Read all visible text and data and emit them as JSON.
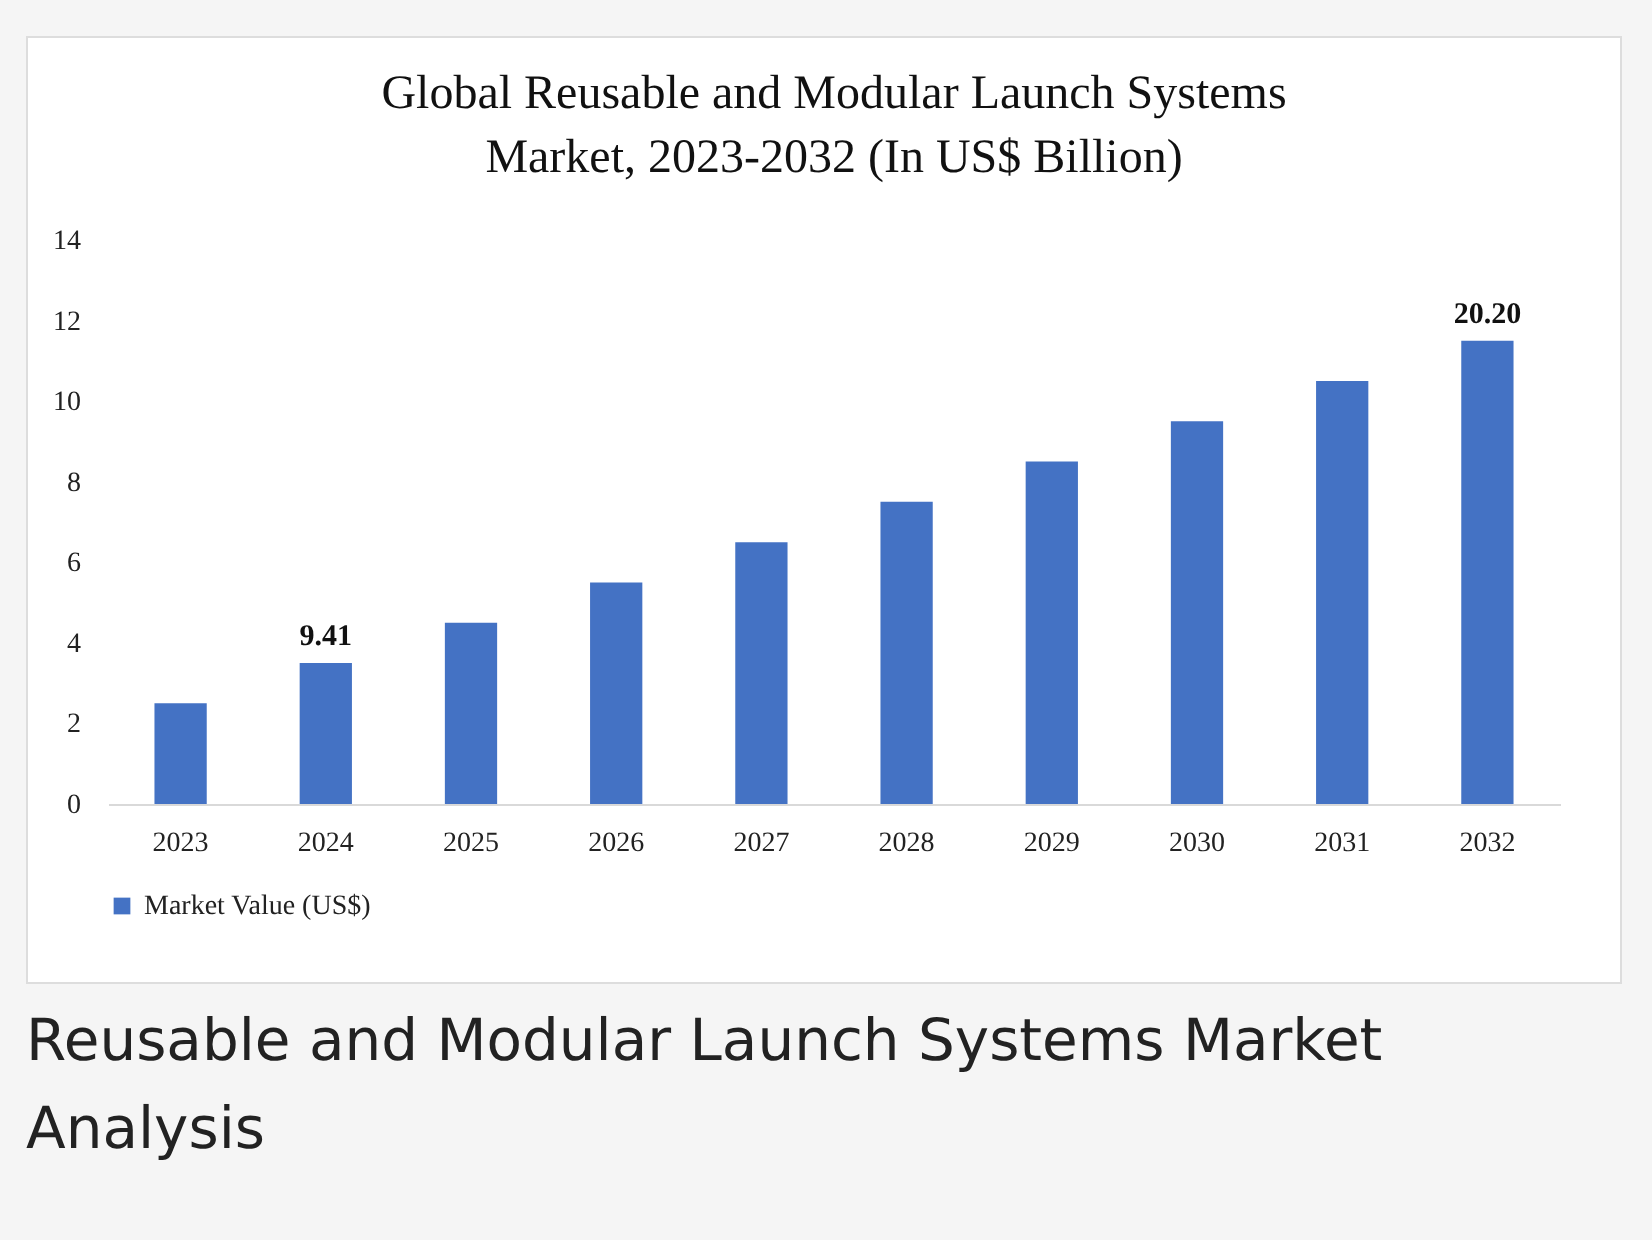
{
  "chart_data": {
    "type": "bar",
    "title": "Global Reusable and Modular Launch Systems\nMarket, 2023-2032 (In US$ Billion)",
    "categories": [
      "2023",
      "2024",
      "2025",
      "2026",
      "2027",
      "2028",
      "2029",
      "2030",
      "2031",
      "2032"
    ],
    "series": [
      {
        "name": "Market Value (US$)",
        "color": "#4472c4",
        "values": [
          2.5,
          3.5,
          4.5,
          5.5,
          6.5,
          7.5,
          8.5,
          9.5,
          10.5,
          11.5
        ]
      }
    ],
    "value_labels": [
      null,
      "9.41",
      null,
      null,
      null,
      null,
      null,
      null,
      null,
      "20.20"
    ],
    "ylim": [
      0,
      14
    ],
    "yticks": [
      0,
      2,
      4,
      6,
      8,
      10,
      12,
      14
    ],
    "grid": false,
    "legend": "bottom",
    "annotations": [
      "Reusable and Modular Launch Systems Market Analysis"
    ]
  }
}
